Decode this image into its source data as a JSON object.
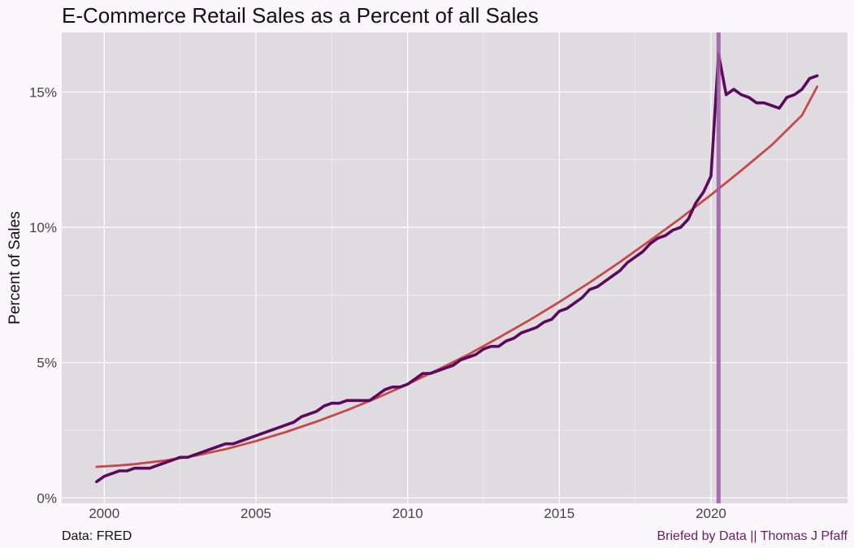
{
  "chart_data": {
    "type": "line",
    "title": "E-Commerce Retail Sales as a Percent of all Sales",
    "xlabel": "",
    "ylabel": "Percent of Sales",
    "xlim": [
      1998.6,
      2024.5
    ],
    "ylim": [
      -0.2,
      17.2
    ],
    "x_ticks": [
      2000,
      2005,
      2010,
      2015,
      2020
    ],
    "x_tick_labels": [
      "2000",
      "2005",
      "2010",
      "2015",
      "2020"
    ],
    "y_ticks": [
      0,
      5,
      10,
      15
    ],
    "y_tick_labels": [
      "0%",
      "5%",
      "10%",
      "15%"
    ],
    "grid": true,
    "colors": {
      "panel": "#e0dbe0",
      "grid": "#ffffff",
      "actual": "#5a0a5c",
      "trend": "#c44a4a",
      "covid_marker": "#9b5aa6",
      "caption_right": "#6a1b6a"
    },
    "series": [
      {
        "role": "actual",
        "x": [
          1999.75,
          2000.0,
          2000.25,
          2000.5,
          2000.75,
          2001.0,
          2001.25,
          2001.5,
          2001.75,
          2002.0,
          2002.25,
          2002.5,
          2002.75,
          2003.0,
          2003.25,
          2003.5,
          2003.75,
          2004.0,
          2004.25,
          2004.5,
          2004.75,
          2005.0,
          2005.25,
          2005.5,
          2005.75,
          2006.0,
          2006.25,
          2006.5,
          2006.75,
          2007.0,
          2007.25,
          2007.5,
          2007.75,
          2008.0,
          2008.25,
          2008.5,
          2008.75,
          2009.0,
          2009.25,
          2009.5,
          2009.75,
          2010.0,
          2010.25,
          2010.5,
          2010.75,
          2011.0,
          2011.25,
          2011.5,
          2011.75,
          2012.0,
          2012.25,
          2012.5,
          2012.75,
          2013.0,
          2013.25,
          2013.5,
          2013.75,
          2014.0,
          2014.25,
          2014.5,
          2014.75,
          2015.0,
          2015.25,
          2015.5,
          2015.75,
          2016.0,
          2016.25,
          2016.5,
          2016.75,
          2017.0,
          2017.25,
          2017.5,
          2017.75,
          2018.0,
          2018.25,
          2018.5,
          2018.75,
          2019.0,
          2019.25,
          2019.5,
          2019.75,
          2020.0,
          2020.25,
          2020.5,
          2020.75,
          2021.0,
          2021.25,
          2021.5,
          2021.75,
          2022.0,
          2022.25,
          2022.5,
          2022.75,
          2023.0,
          2023.25,
          2023.5
        ],
        "y": [
          0.6,
          0.8,
          0.9,
          1.0,
          1.0,
          1.1,
          1.1,
          1.1,
          1.2,
          1.3,
          1.4,
          1.5,
          1.5,
          1.6,
          1.7,
          1.8,
          1.9,
          2.0,
          2.0,
          2.1,
          2.2,
          2.3,
          2.4,
          2.5,
          2.6,
          2.7,
          2.8,
          3.0,
          3.1,
          3.2,
          3.4,
          3.5,
          3.5,
          3.6,
          3.6,
          3.6,
          3.6,
          3.8,
          4.0,
          4.1,
          4.1,
          4.2,
          4.4,
          4.6,
          4.6,
          4.7,
          4.8,
          4.9,
          5.1,
          5.2,
          5.3,
          5.5,
          5.6,
          5.6,
          5.8,
          5.9,
          6.1,
          6.2,
          6.3,
          6.5,
          6.6,
          6.9,
          7.0,
          7.2,
          7.4,
          7.7,
          7.8,
          8.0,
          8.2,
          8.4,
          8.7,
          8.9,
          9.1,
          9.4,
          9.6,
          9.7,
          9.9,
          10.0,
          10.3,
          10.9,
          11.3,
          11.9,
          16.4,
          14.9,
          15.1,
          14.9,
          14.8,
          14.6,
          14.6,
          14.5,
          14.4,
          14.8,
          14.9,
          15.1,
          15.5,
          15.6
        ]
      },
      {
        "role": "trend",
        "x": [
          1999.75,
          2000.5,
          2001.0,
          2002.0,
          2003.0,
          2004.0,
          2005.0,
          2006.0,
          2007.0,
          2008.0,
          2009.0,
          2010.0,
          2011.0,
          2012.0,
          2013.0,
          2014.0,
          2015.0,
          2016.0,
          2017.0,
          2018.0,
          2019.0,
          2020.0,
          2021.0,
          2022.0,
          2023.0,
          2023.5
        ],
        "y": [
          1.15,
          1.2,
          1.25,
          1.38,
          1.56,
          1.8,
          2.1,
          2.44,
          2.82,
          3.24,
          3.7,
          4.2,
          4.74,
          5.3,
          5.92,
          6.56,
          7.24,
          7.96,
          8.72,
          9.52,
          10.34,
          11.2,
          12.1,
          13.04,
          14.14,
          15.2
        ]
      }
    ],
    "vline": {
      "role": "covid_marker",
      "x": 2020.25
    },
    "caption_left": "Data: FRED",
    "caption_right": "Briefed by Data || Thomas J Pfaff"
  }
}
